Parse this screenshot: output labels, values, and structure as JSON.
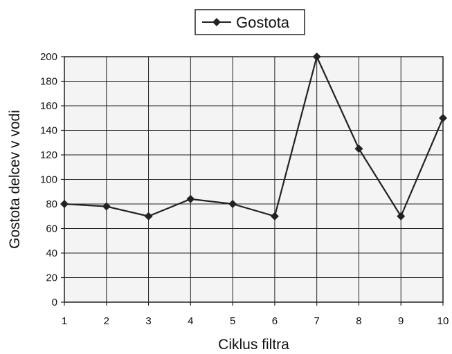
{
  "chart_data": {
    "type": "line",
    "title": "",
    "xlabel": "Ciklus filtra",
    "ylabel": "Gostota delcev v vodi",
    "x": [
      1,
      2,
      3,
      4,
      5,
      6,
      7,
      8,
      9,
      10
    ],
    "series": [
      {
        "name": "Gostota",
        "values": [
          80,
          78,
          70,
          84,
          80,
          70,
          200,
          125,
          70,
          150
        ]
      }
    ],
    "xlim": [
      1,
      10
    ],
    "ylim": [
      0,
      200
    ],
    "yticks": [
      0,
      20,
      40,
      60,
      80,
      100,
      120,
      140,
      160,
      180,
      200
    ],
    "grid": true,
    "legend": "top-center",
    "marker": "diamond",
    "colors": {
      "line": "#222222",
      "grid": "#222222",
      "plot_background": "#f4f4f4"
    }
  }
}
